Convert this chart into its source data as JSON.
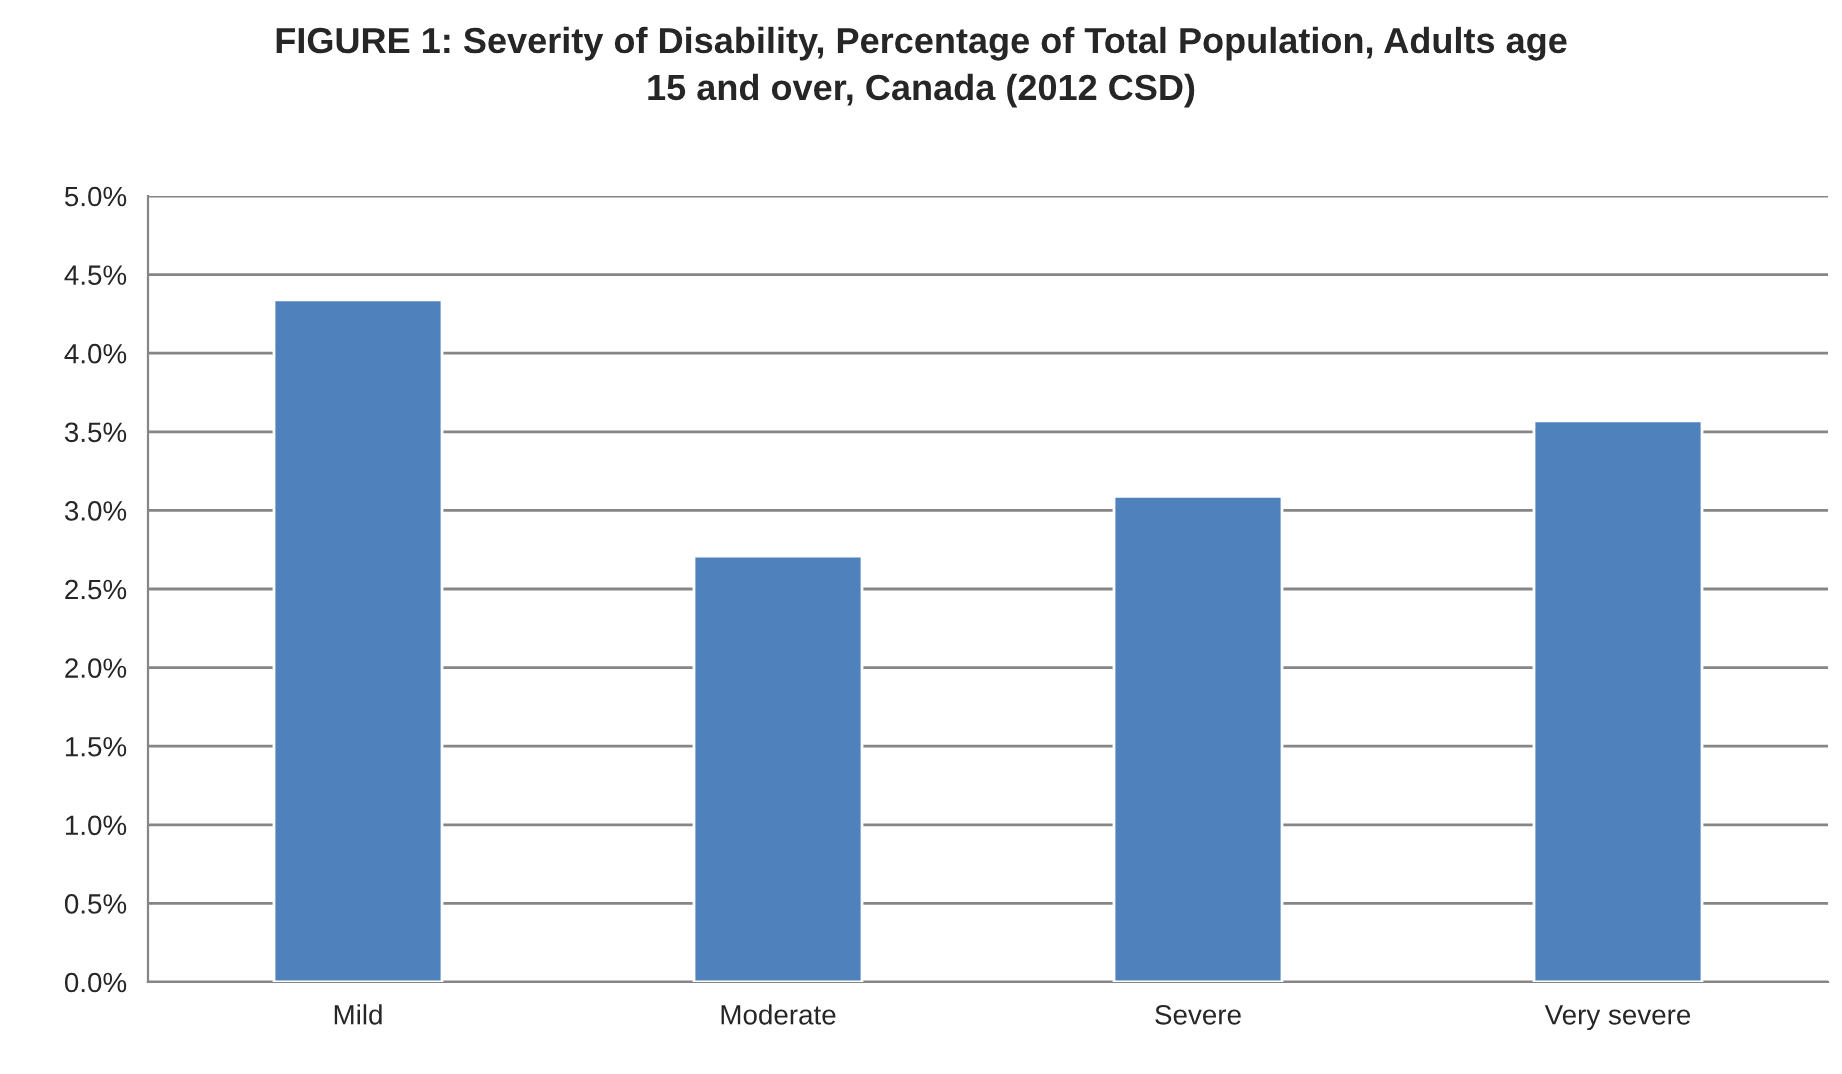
{
  "chart_data": {
    "type": "bar",
    "title": "FIGURE 1: Severity of Disability, Percentage of Total Population, Adults age\n15 and over, Canada (2012 CSD)",
    "categories": [
      "Mild",
      "Moderate",
      "Severe",
      "Very severe"
    ],
    "values": [
      4.34,
      2.71,
      3.09,
      3.57
    ],
    "color": "#4f81bd",
    "ylim": [
      0,
      5
    ],
    "yticks": [
      {
        "value": 0,
        "label": "0.0%"
      },
      {
        "value": 0.5,
        "label": "0.5%"
      },
      {
        "value": 1,
        "label": "1.0%"
      },
      {
        "value": 1.5,
        "label": "1.5%"
      },
      {
        "value": 2,
        "label": "2.0%"
      },
      {
        "value": 2.5,
        "label": "2.5%"
      },
      {
        "value": 3,
        "label": "3.0%"
      },
      {
        "value": 3.5,
        "label": "3.5%"
      },
      {
        "value": 4,
        "label": "4.0%"
      },
      {
        "value": 4.5,
        "label": "4.5%"
      },
      {
        "value": 5,
        "label": "5.0%"
      }
    ],
    "grid": "y",
    "legend": false
  }
}
